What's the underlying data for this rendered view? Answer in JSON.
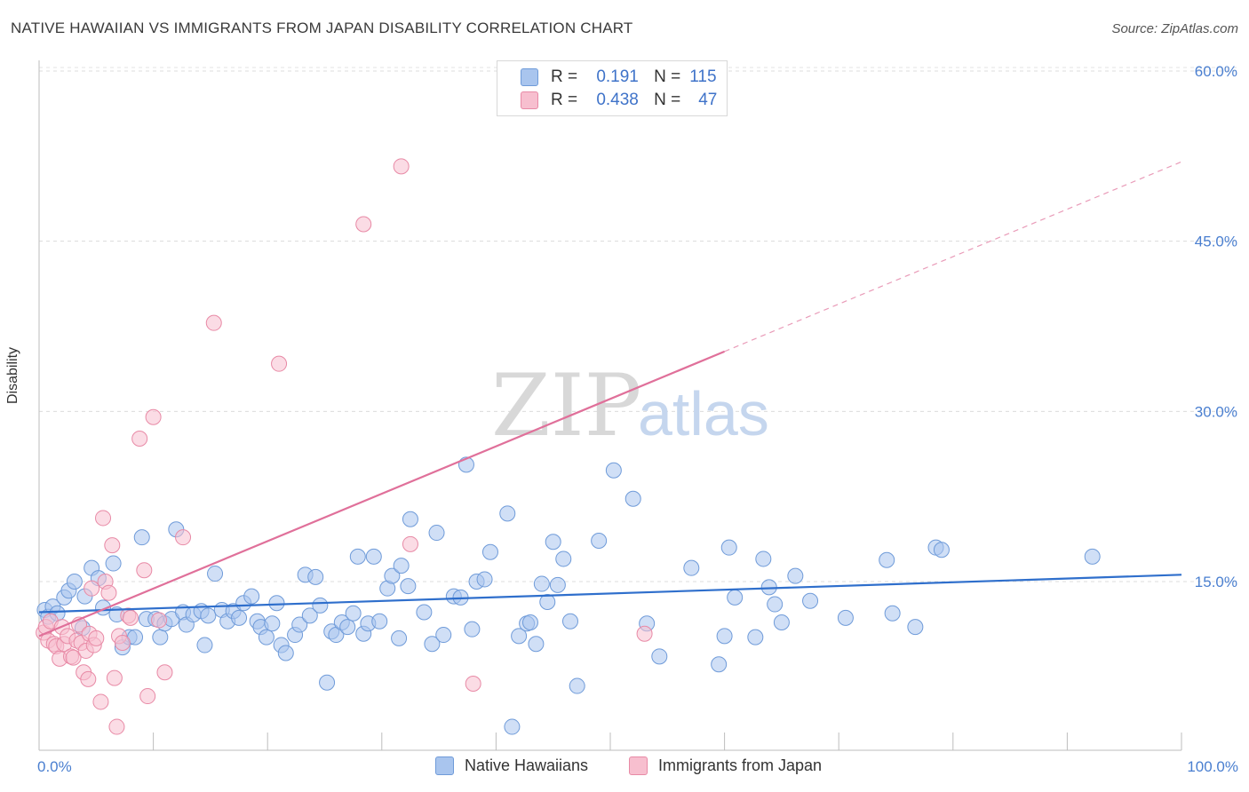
{
  "header": {
    "title": "NATIVE HAWAIIAN VS IMMIGRANTS FROM JAPAN DISABILITY CORRELATION CHART",
    "source": "Source: ZipAtlas.com"
  },
  "watermark": {
    "zip": "ZIP",
    "atlas": "atlas"
  },
  "legend_top": [
    {
      "r_label": "R =",
      "r_value": "0.191",
      "n_label": "N =",
      "n_value": "115"
    },
    {
      "r_label": "R =",
      "r_value": "0.438",
      "n_label": "N =",
      "n_value": "47"
    }
  ],
  "chart_data": {
    "type": "scatter",
    "title": "NATIVE HAWAIIAN VS IMMIGRANTS FROM JAPAN DISABILITY CORRELATION CHART",
    "xlabel": "",
    "ylabel": "Disability",
    "xlim": [
      0,
      100
    ],
    "ylim": [
      0,
      63
    ],
    "x_tick_labels": [
      {
        "value": 0,
        "label": "0.0%"
      },
      {
        "value": 100,
        "label": "100.0%"
      }
    ],
    "y_ticks": [
      {
        "value": 15,
        "label": "15.0%"
      },
      {
        "value": 30,
        "label": "30.0%"
      },
      {
        "value": 45,
        "label": "45.0%"
      },
      {
        "value": 60,
        "label": "60.0%"
      }
    ],
    "grid": "horizontal dashed",
    "legend_placement": "bottom-center",
    "series": [
      {
        "name": "Native Hawaiians",
        "color": "#a9c5ee",
        "stroke": "#6f9bd9",
        "line_color": "#2f6fcc",
        "trend": {
          "x0": 0,
          "y0": 12.3,
          "x1": 100,
          "y1": 15.6,
          "dashed_from": 100
        },
        "points": [
          [
            0.5,
            12.5
          ],
          [
            0.8,
            11.9
          ],
          [
            1.2,
            12.8
          ],
          [
            1.6,
            12.2
          ],
          [
            2.2,
            13.6
          ],
          [
            2.6,
            14.2
          ],
          [
            3.1,
            15.0
          ],
          [
            3.8,
            10.9
          ],
          [
            4.0,
            13.7
          ],
          [
            4.6,
            16.2
          ],
          [
            5.2,
            15.3
          ],
          [
            5.6,
            12.7
          ],
          [
            6.5,
            16.6
          ],
          [
            6.8,
            12.1
          ],
          [
            7.3,
            9.2
          ],
          [
            7.9,
            10.1
          ],
          [
            8.4,
            10.1
          ],
          [
            9.0,
            18.9
          ],
          [
            9.4,
            11.7
          ],
          [
            10.2,
            11.7
          ],
          [
            10.6,
            10.1
          ],
          [
            11.0,
            11.3
          ],
          [
            11.6,
            11.7
          ],
          [
            12.0,
            19.6
          ],
          [
            12.6,
            12.3
          ],
          [
            12.9,
            11.2
          ],
          [
            13.5,
            12.1
          ],
          [
            14.2,
            12.4
          ],
          [
            14.5,
            9.4
          ],
          [
            14.8,
            12.0
          ],
          [
            15.4,
            15.7
          ],
          [
            16.0,
            12.5
          ],
          [
            16.5,
            11.5
          ],
          [
            17.0,
            12.4
          ],
          [
            17.5,
            11.8
          ],
          [
            17.9,
            13.1
          ],
          [
            18.6,
            13.7
          ],
          [
            19.1,
            11.5
          ],
          [
            19.4,
            11.0
          ],
          [
            19.9,
            10.1
          ],
          [
            20.4,
            11.3
          ],
          [
            20.8,
            13.1
          ],
          [
            21.2,
            9.4
          ],
          [
            21.6,
            8.7
          ],
          [
            22.4,
            10.3
          ],
          [
            22.8,
            11.2
          ],
          [
            23.3,
            15.6
          ],
          [
            23.7,
            12.0
          ],
          [
            24.2,
            15.4
          ],
          [
            24.6,
            12.9
          ],
          [
            25.2,
            6.1
          ],
          [
            25.6,
            10.6
          ],
          [
            26.0,
            10.3
          ],
          [
            26.5,
            11.4
          ],
          [
            27.0,
            11.0
          ],
          [
            27.5,
            12.2
          ],
          [
            27.9,
            17.2
          ],
          [
            28.4,
            10.4
          ],
          [
            28.8,
            11.3
          ],
          [
            29.3,
            17.2
          ],
          [
            29.8,
            11.5
          ],
          [
            30.5,
            14.4
          ],
          [
            30.9,
            15.5
          ],
          [
            31.5,
            10.0
          ],
          [
            31.7,
            16.4
          ],
          [
            32.3,
            14.6
          ],
          [
            32.5,
            20.5
          ],
          [
            33.7,
            12.3
          ],
          [
            34.4,
            9.5
          ],
          [
            34.8,
            19.3
          ],
          [
            35.4,
            10.3
          ],
          [
            36.3,
            13.7
          ],
          [
            36.9,
            13.6
          ],
          [
            37.4,
            25.3
          ],
          [
            37.9,
            10.8
          ],
          [
            38.3,
            15.0
          ],
          [
            39.0,
            15.2
          ],
          [
            39.5,
            17.6
          ],
          [
            41.0,
            21.0
          ],
          [
            41.4,
            2.2
          ],
          [
            42.0,
            10.2
          ],
          [
            42.7,
            11.3
          ],
          [
            43.0,
            11.4
          ],
          [
            43.5,
            9.5
          ],
          [
            44.0,
            14.8
          ],
          [
            44.5,
            13.2
          ],
          [
            45.0,
            18.5
          ],
          [
            45.4,
            14.7
          ],
          [
            45.9,
            17.0
          ],
          [
            46.5,
            11.5
          ],
          [
            47.1,
            5.8
          ],
          [
            49.0,
            18.6
          ],
          [
            50.3,
            24.8
          ],
          [
            52.0,
            22.3
          ],
          [
            53.2,
            11.3
          ],
          [
            54.3,
            8.4
          ],
          [
            57.1,
            16.2
          ],
          [
            59.5,
            7.7
          ],
          [
            60.0,
            10.2
          ],
          [
            60.4,
            18.0
          ],
          [
            60.9,
            13.6
          ],
          [
            62.7,
            10.1
          ],
          [
            63.4,
            17.0
          ],
          [
            63.9,
            14.5
          ],
          [
            64.4,
            13.0
          ],
          [
            65.0,
            11.4
          ],
          [
            66.2,
            15.5
          ],
          [
            67.5,
            13.3
          ],
          [
            70.6,
            11.8
          ],
          [
            74.2,
            16.9
          ],
          [
            74.7,
            12.2
          ],
          [
            76.7,
            11.0
          ],
          [
            78.5,
            18.0
          ],
          [
            79.0,
            17.8
          ],
          [
            92.2,
            17.2
          ]
        ]
      },
      {
        "name": "Immigrants from Japan",
        "color": "#f7bfcf",
        "stroke": "#e88aa6",
        "line_color": "#e0709a",
        "trend": {
          "x0": 0,
          "y0": 10.2,
          "x1": 100,
          "y1": 52.0,
          "dashed_from": 60
        },
        "points": [
          [
            0.4,
            10.5
          ],
          [
            0.6,
            11.0
          ],
          [
            0.8,
            9.8
          ],
          [
            1.0,
            11.5
          ],
          [
            1.3,
            9.5
          ],
          [
            1.5,
            9.3
          ],
          [
            1.8,
            8.2
          ],
          [
            2.0,
            11.0
          ],
          [
            2.2,
            9.5
          ],
          [
            2.5,
            10.2
          ],
          [
            2.8,
            8.4
          ],
          [
            3.0,
            8.3
          ],
          [
            3.3,
            9.8
          ],
          [
            3.5,
            11.2
          ],
          [
            3.7,
            9.6
          ],
          [
            3.9,
            7.0
          ],
          [
            4.1,
            8.9
          ],
          [
            4.3,
            6.4
          ],
          [
            4.4,
            10.4
          ],
          [
            4.6,
            14.4
          ],
          [
            4.8,
            9.4
          ],
          [
            5.0,
            10.0
          ],
          [
            5.4,
            4.4
          ],
          [
            5.6,
            20.6
          ],
          [
            5.8,
            15.0
          ],
          [
            6.1,
            14.0
          ],
          [
            6.4,
            18.2
          ],
          [
            6.6,
            6.5
          ],
          [
            6.8,
            2.2
          ],
          [
            7.0,
            10.2
          ],
          [
            7.3,
            9.6
          ],
          [
            7.8,
            12.0
          ],
          [
            8.0,
            11.8
          ],
          [
            8.8,
            27.6
          ],
          [
            9.2,
            16.0
          ],
          [
            9.5,
            4.9
          ],
          [
            10.0,
            29.5
          ],
          [
            10.5,
            11.6
          ],
          [
            11.0,
            7.0
          ],
          [
            12.6,
            18.9
          ],
          [
            15.3,
            37.8
          ],
          [
            21.0,
            34.2
          ],
          [
            28.4,
            46.5
          ],
          [
            31.7,
            51.6
          ],
          [
            32.5,
            18.3
          ],
          [
            38.0,
            6.0
          ],
          [
            53.0,
            10.4
          ]
        ]
      }
    ]
  }
}
